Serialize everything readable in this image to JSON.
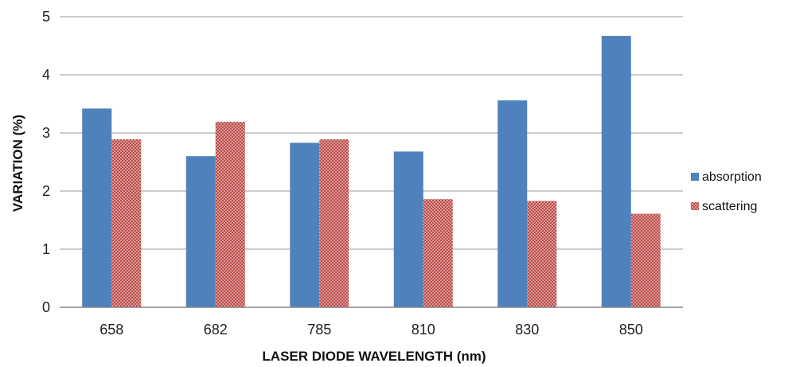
{
  "chart_data": {
    "type": "bar",
    "title": "",
    "xlabel": "LASER DIODE WAVELENGTH (nm)",
    "ylabel": "VARIATION (%)",
    "categories": [
      "658",
      "682",
      "785",
      "810",
      "830",
      "850"
    ],
    "ylim": [
      0,
      5
    ],
    "yticks": [
      "0",
      "1",
      "2",
      "3",
      "4",
      "5"
    ],
    "grid": true,
    "legend_position": "right",
    "series": [
      {
        "name": "absorption",
        "values": [
          3.42,
          2.6,
          2.83,
          2.68,
          3.56,
          4.67
        ],
        "color": "#4f81bd",
        "pattern": "solid"
      },
      {
        "name": "scattering",
        "values": [
          2.89,
          3.19,
          2.89,
          1.86,
          1.83,
          1.61
        ],
        "color": "#c0504d",
        "pattern": "crosshatch"
      }
    ]
  }
}
